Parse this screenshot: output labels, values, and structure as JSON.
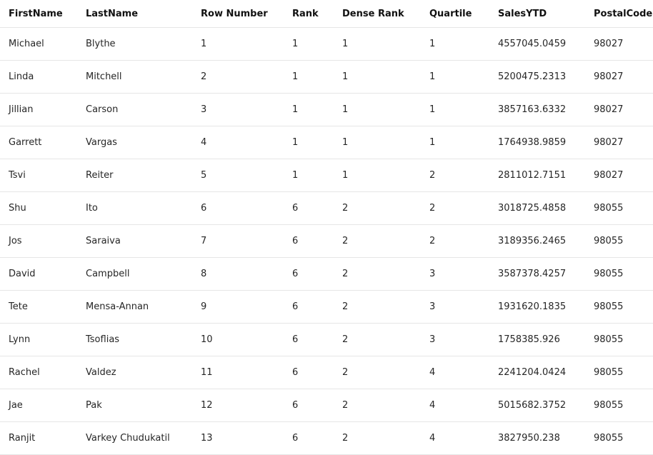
{
  "table": {
    "columns": [
      "FirstName",
      "LastName",
      "Row Number",
      "Rank",
      "Dense Rank",
      "Quartile",
      "SalesYTD",
      "PostalCode"
    ],
    "rows": [
      [
        "Michael",
        "Blythe",
        "1",
        "1",
        "1",
        "1",
        "4557045.0459",
        "98027"
      ],
      [
        "Linda",
        "Mitchell",
        "2",
        "1",
        "1",
        "1",
        "5200475.2313",
        "98027"
      ],
      [
        "Jillian",
        "Carson",
        "3",
        "1",
        "1",
        "1",
        "3857163.6332",
        "98027"
      ],
      [
        "Garrett",
        "Vargas",
        "4",
        "1",
        "1",
        "1",
        "1764938.9859",
        "98027"
      ],
      [
        "Tsvi",
        "Reiter",
        "5",
        "1",
        "1",
        "2",
        "2811012.7151",
        "98027"
      ],
      [
        "Shu",
        "Ito",
        "6",
        "6",
        "2",
        "2",
        "3018725.4858",
        "98055"
      ],
      [
        "Jos",
        "Saraiva",
        "7",
        "6",
        "2",
        "2",
        "3189356.2465",
        "98055"
      ],
      [
        "David",
        "Campbell",
        "8",
        "6",
        "2",
        "3",
        "3587378.4257",
        "98055"
      ],
      [
        "Tete",
        "Mensa-Annan",
        "9",
        "6",
        "2",
        "3",
        "1931620.1835",
        "98055"
      ],
      [
        "Lynn",
        "Tsoflias",
        "10",
        "6",
        "2",
        "3",
        "1758385.926",
        "98055"
      ],
      [
        "Rachel",
        "Valdez",
        "11",
        "6",
        "2",
        "4",
        "2241204.0424",
        "98055"
      ],
      [
        "Jae",
        "Pak",
        "12",
        "6",
        "2",
        "4",
        "5015682.3752",
        "98055"
      ],
      [
        "Ranjit",
        "Varkey Chudukatil",
        "13",
        "6",
        "2",
        "4",
        "3827950.238",
        "98055"
      ]
    ]
  }
}
